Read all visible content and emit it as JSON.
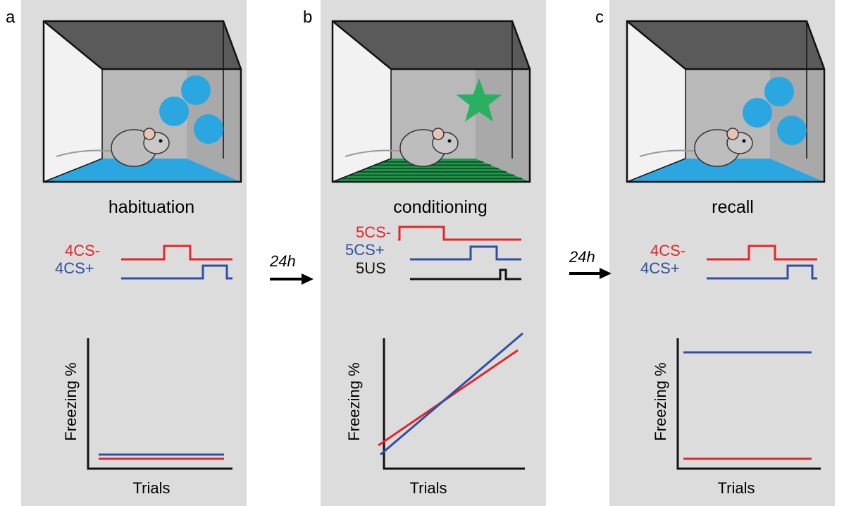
{
  "panels": [
    {
      "letter": "a",
      "title": "habituation",
      "stimuli": [
        "4CS-",
        "4CS+"
      ],
      "y_axis_label": "Freezing %",
      "x_axis_label": "Trials"
    },
    {
      "letter": "b",
      "title": "conditioning",
      "stimuli": [
        "5CS-",
        "5CS+",
        "5US"
      ],
      "y_axis_label": "Freezing %",
      "x_axis_label": "Trials"
    },
    {
      "letter": "c",
      "title": "recall",
      "stimuli": [
        "4CS-",
        "4CS+"
      ],
      "y_axis_label": "Freezing %",
      "x_axis_label": "Trials"
    }
  ],
  "arrows": [
    {
      "label": "24h"
    },
    {
      "label": "24h"
    }
  ]
}
